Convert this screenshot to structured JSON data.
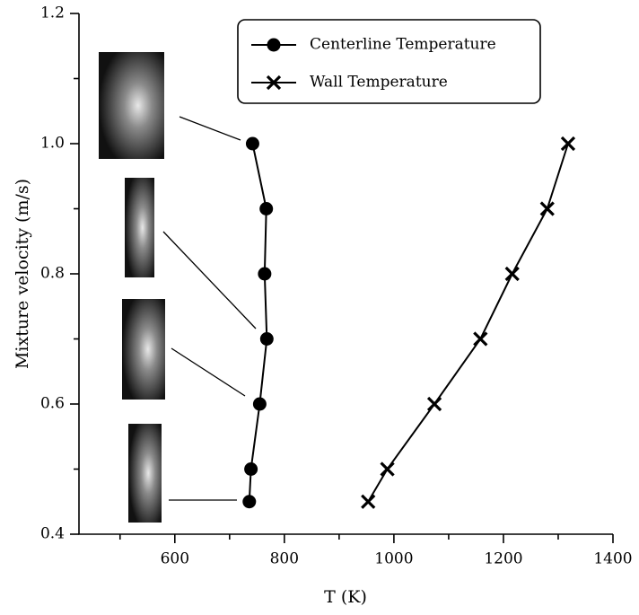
{
  "chart_data": {
    "type": "line",
    "xlabel": "T (K)",
    "ylabel": "Mixture velocity (m/s)",
    "xlim": [
      425,
      1400
    ],
    "xticks": [
      600,
      800,
      1000,
      1200,
      1400
    ],
    "ylim": [
      0.4,
      1.2
    ],
    "yticks": [
      0.4,
      0.6,
      0.8,
      {
        "value": 1,
        "label": "1.0"
      },
      1.2
    ],
    "legend": "top-center",
    "series": [
      {
        "name": "Centerline Temperature",
        "color": "#000000",
        "marker": "circle",
        "x": [
          736,
          739,
          755,
          768,
          764,
          767,
          742
        ],
        "values": [
          0.45,
          0.5,
          0.6,
          0.7,
          0.8,
          0.9,
          1
        ]
      },
      {
        "name": "Wall Temperature",
        "color": "#000000",
        "marker": "x",
        "x": [
          953,
          988,
          1074,
          1158,
          1216,
          1280,
          1318
        ],
        "values": [
          0.45,
          0.5,
          0.6,
          0.7,
          0.8,
          0.9,
          1
        ]
      }
    ]
  }
}
